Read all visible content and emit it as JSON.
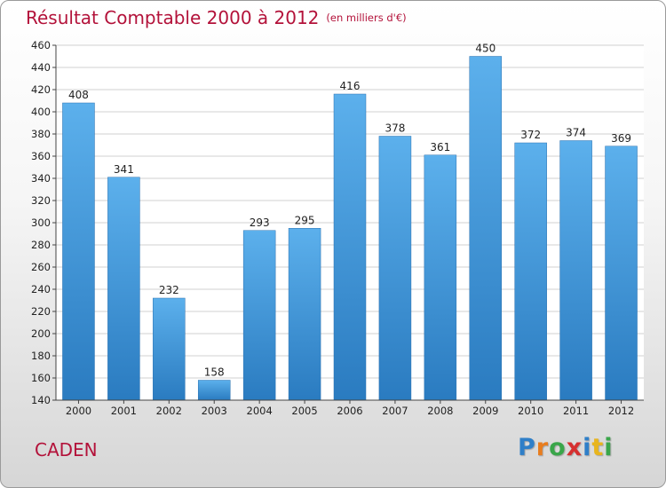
{
  "header": {
    "title": "Résultat Comptable 2000 à 2012",
    "subtitle": "(en milliers d'€)"
  },
  "footer": {
    "commune": "CADEN",
    "logo_letters": [
      "P",
      "r",
      "o",
      "x",
      "i",
      "t",
      "i"
    ],
    "logo_colors": [
      "#2f7fc8",
      "#e87d1e",
      "#3aa64a",
      "#d62f2f",
      "#2f7fc8",
      "#e8b51e",
      "#3aa64a"
    ]
  },
  "chart_data": {
    "type": "bar",
    "categories": [
      "2000",
      "2001",
      "2002",
      "2003",
      "2004",
      "2005",
      "2006",
      "2007",
      "2008",
      "2009",
      "2010",
      "2011",
      "2012"
    ],
    "values": [
      408,
      341,
      232,
      158,
      293,
      295,
      416,
      378,
      361,
      450,
      372,
      374,
      369
    ],
    "title": "Résultat Comptable 2000 à 2012",
    "subtitle": "(en milliers d'€)",
    "ylim": [
      140,
      460
    ],
    "yticks": [
      140,
      160,
      180,
      200,
      220,
      240,
      260,
      280,
      300,
      320,
      340,
      360,
      380,
      400,
      420,
      440,
      460
    ],
    "grid": true,
    "bar_color": "#3d95dc"
  }
}
